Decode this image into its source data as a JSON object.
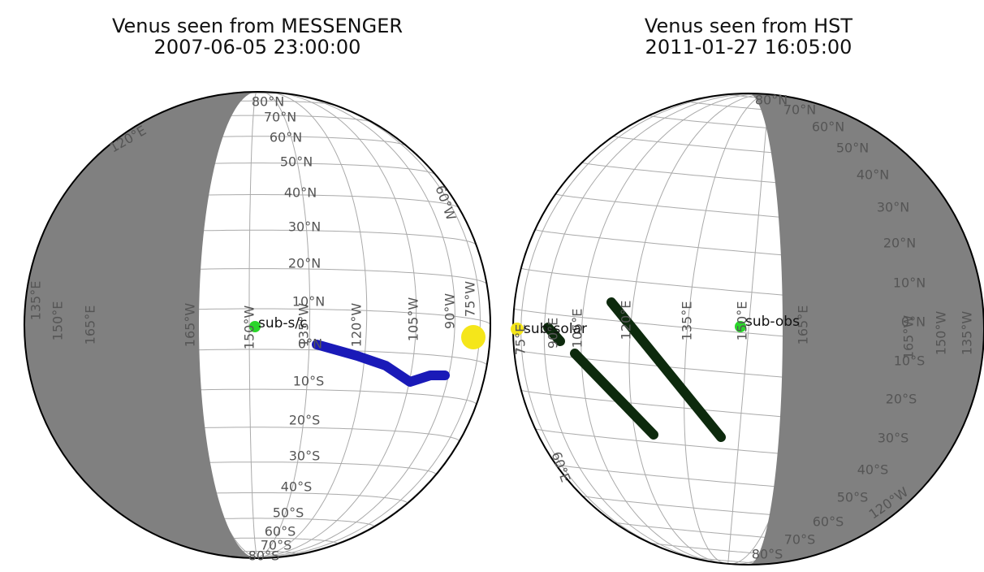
{
  "panels": [
    {
      "title": "Venus seen from MESSENGER",
      "subtitle": "2007-06-05 23:00:00",
      "lat_labels": [
        "80°N",
        "70°N",
        "60°N",
        "50°N",
        "40°N",
        "30°N",
        "20°N",
        "10°N",
        "0°N",
        "10°S",
        "20°S",
        "30°S",
        "40°S",
        "50°S",
        "60°S",
        "70°S",
        "80°S"
      ],
      "lon_labels": [
        "135°E",
        "150°E",
        "165°E",
        "165°W",
        "150°W",
        "135°W",
        "120°W",
        "105°W",
        "90°W",
        "75°W",
        "120°E",
        "60°W"
      ],
      "point_labels": [
        "sub-s/c"
      ]
    },
    {
      "title": "Venus seen from HST",
      "subtitle": "2011-01-27 16:05:00",
      "lat_labels": [
        "80°N",
        "70°N",
        "60°N",
        "50°N",
        "40°N",
        "30°N",
        "20°N",
        "10°N",
        "0°N",
        "10°S",
        "20°S",
        "30°S",
        "40°S",
        "50°S",
        "60°S",
        "70°S",
        "80°S"
      ],
      "lon_labels": [
        "75°E",
        "90°E",
        "105°E",
        "120°E",
        "135°E",
        "150°E",
        "165°E",
        "165°W",
        "150°W",
        "135°W",
        "60°E",
        "120°W"
      ],
      "point_labels": [
        "sub-solar",
        "sub-obs"
      ]
    }
  ]
}
